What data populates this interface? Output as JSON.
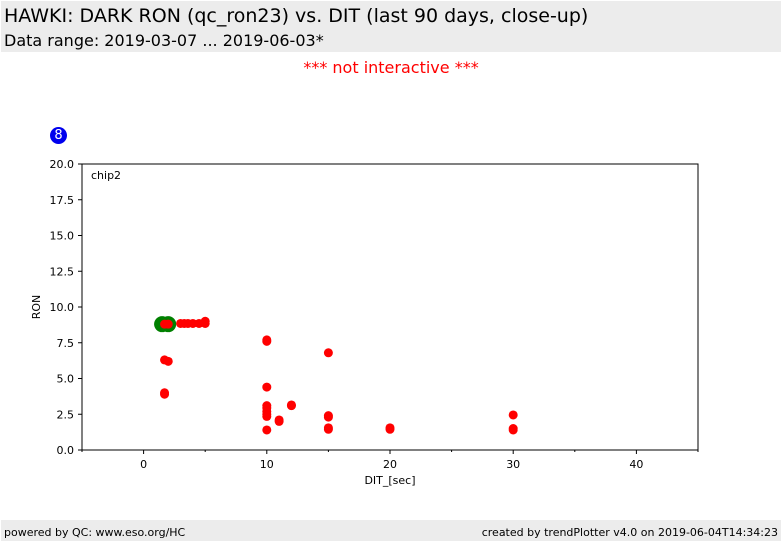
{
  "header": {
    "title": "HAWKI: DARK RON (qc_ron23) vs. DIT (last 90 days, close-up)",
    "subtitle": "Data range: 2019-03-07 ... 2019-06-03*",
    "notice": "*** not interactive ***"
  },
  "badge": {
    "label": "8",
    "color": "#0000ee"
  },
  "footer": {
    "left": "powered by QC: www.eso.org/HC",
    "right": "created by trendPlotter v4.0 on 2019-06-04T14:34:23"
  },
  "chart_data": {
    "type": "scatter",
    "panel_label": "chip2",
    "xlabel": "DIT_[sec]",
    "ylabel": "RON",
    "xlim": [
      -5,
      45
    ],
    "ylim": [
      0,
      20
    ],
    "x_ticks": [
      0,
      10,
      20,
      30,
      40
    ],
    "y_ticks": [
      0.0,
      2.5,
      5.0,
      7.5,
      10.0,
      12.5,
      15.0,
      17.5,
      20.0
    ],
    "grid": false,
    "series": [
      {
        "color": "#ff0000",
        "points": [
          {
            "x": 1.7,
            "y": 8.8
          },
          {
            "x": 2.0,
            "y": 8.8
          },
          {
            "x": 3.0,
            "y": 8.85
          },
          {
            "x": 3.3,
            "y": 8.85
          },
          {
            "x": 3.6,
            "y": 8.85
          },
          {
            "x": 4.0,
            "y": 8.85
          },
          {
            "x": 4.5,
            "y": 8.85
          },
          {
            "x": 5.0,
            "y": 8.85
          },
          {
            "x": 5.0,
            "y": 9.0
          },
          {
            "x": 1.7,
            "y": 6.3
          },
          {
            "x": 2.0,
            "y": 6.2
          },
          {
            "x": 1.7,
            "y": 3.9
          },
          {
            "x": 1.7,
            "y": 4.0
          },
          {
            "x": 10,
            "y": 7.7
          },
          {
            "x": 10,
            "y": 7.6
          },
          {
            "x": 10,
            "y": 4.4
          },
          {
            "x": 10,
            "y": 3.1
          },
          {
            "x": 10,
            "y": 2.95
          },
          {
            "x": 10,
            "y": 2.7
          },
          {
            "x": 10,
            "y": 2.5
          },
          {
            "x": 10,
            "y": 2.35
          },
          {
            "x": 10,
            "y": 1.4
          },
          {
            "x": 11,
            "y": 2.1
          },
          {
            "x": 11,
            "y": 2.0
          },
          {
            "x": 12,
            "y": 3.1
          },
          {
            "x": 12,
            "y": 3.15
          },
          {
            "x": 15,
            "y": 6.8
          },
          {
            "x": 15,
            "y": 2.4
          },
          {
            "x": 15,
            "y": 2.3
          },
          {
            "x": 15,
            "y": 1.55
          },
          {
            "x": 15,
            "y": 1.45
          },
          {
            "x": 20,
            "y": 1.55
          },
          {
            "x": 20,
            "y": 1.45
          },
          {
            "x": 30,
            "y": 2.45
          },
          {
            "x": 30,
            "y": 1.5
          },
          {
            "x": 30,
            "y": 1.4
          }
        ]
      },
      {
        "color": "#008000",
        "marker": "large",
        "points": [
          {
            "x": 1.5,
            "y": 8.8
          },
          {
            "x": 2.0,
            "y": 8.8
          }
        ]
      }
    ]
  }
}
